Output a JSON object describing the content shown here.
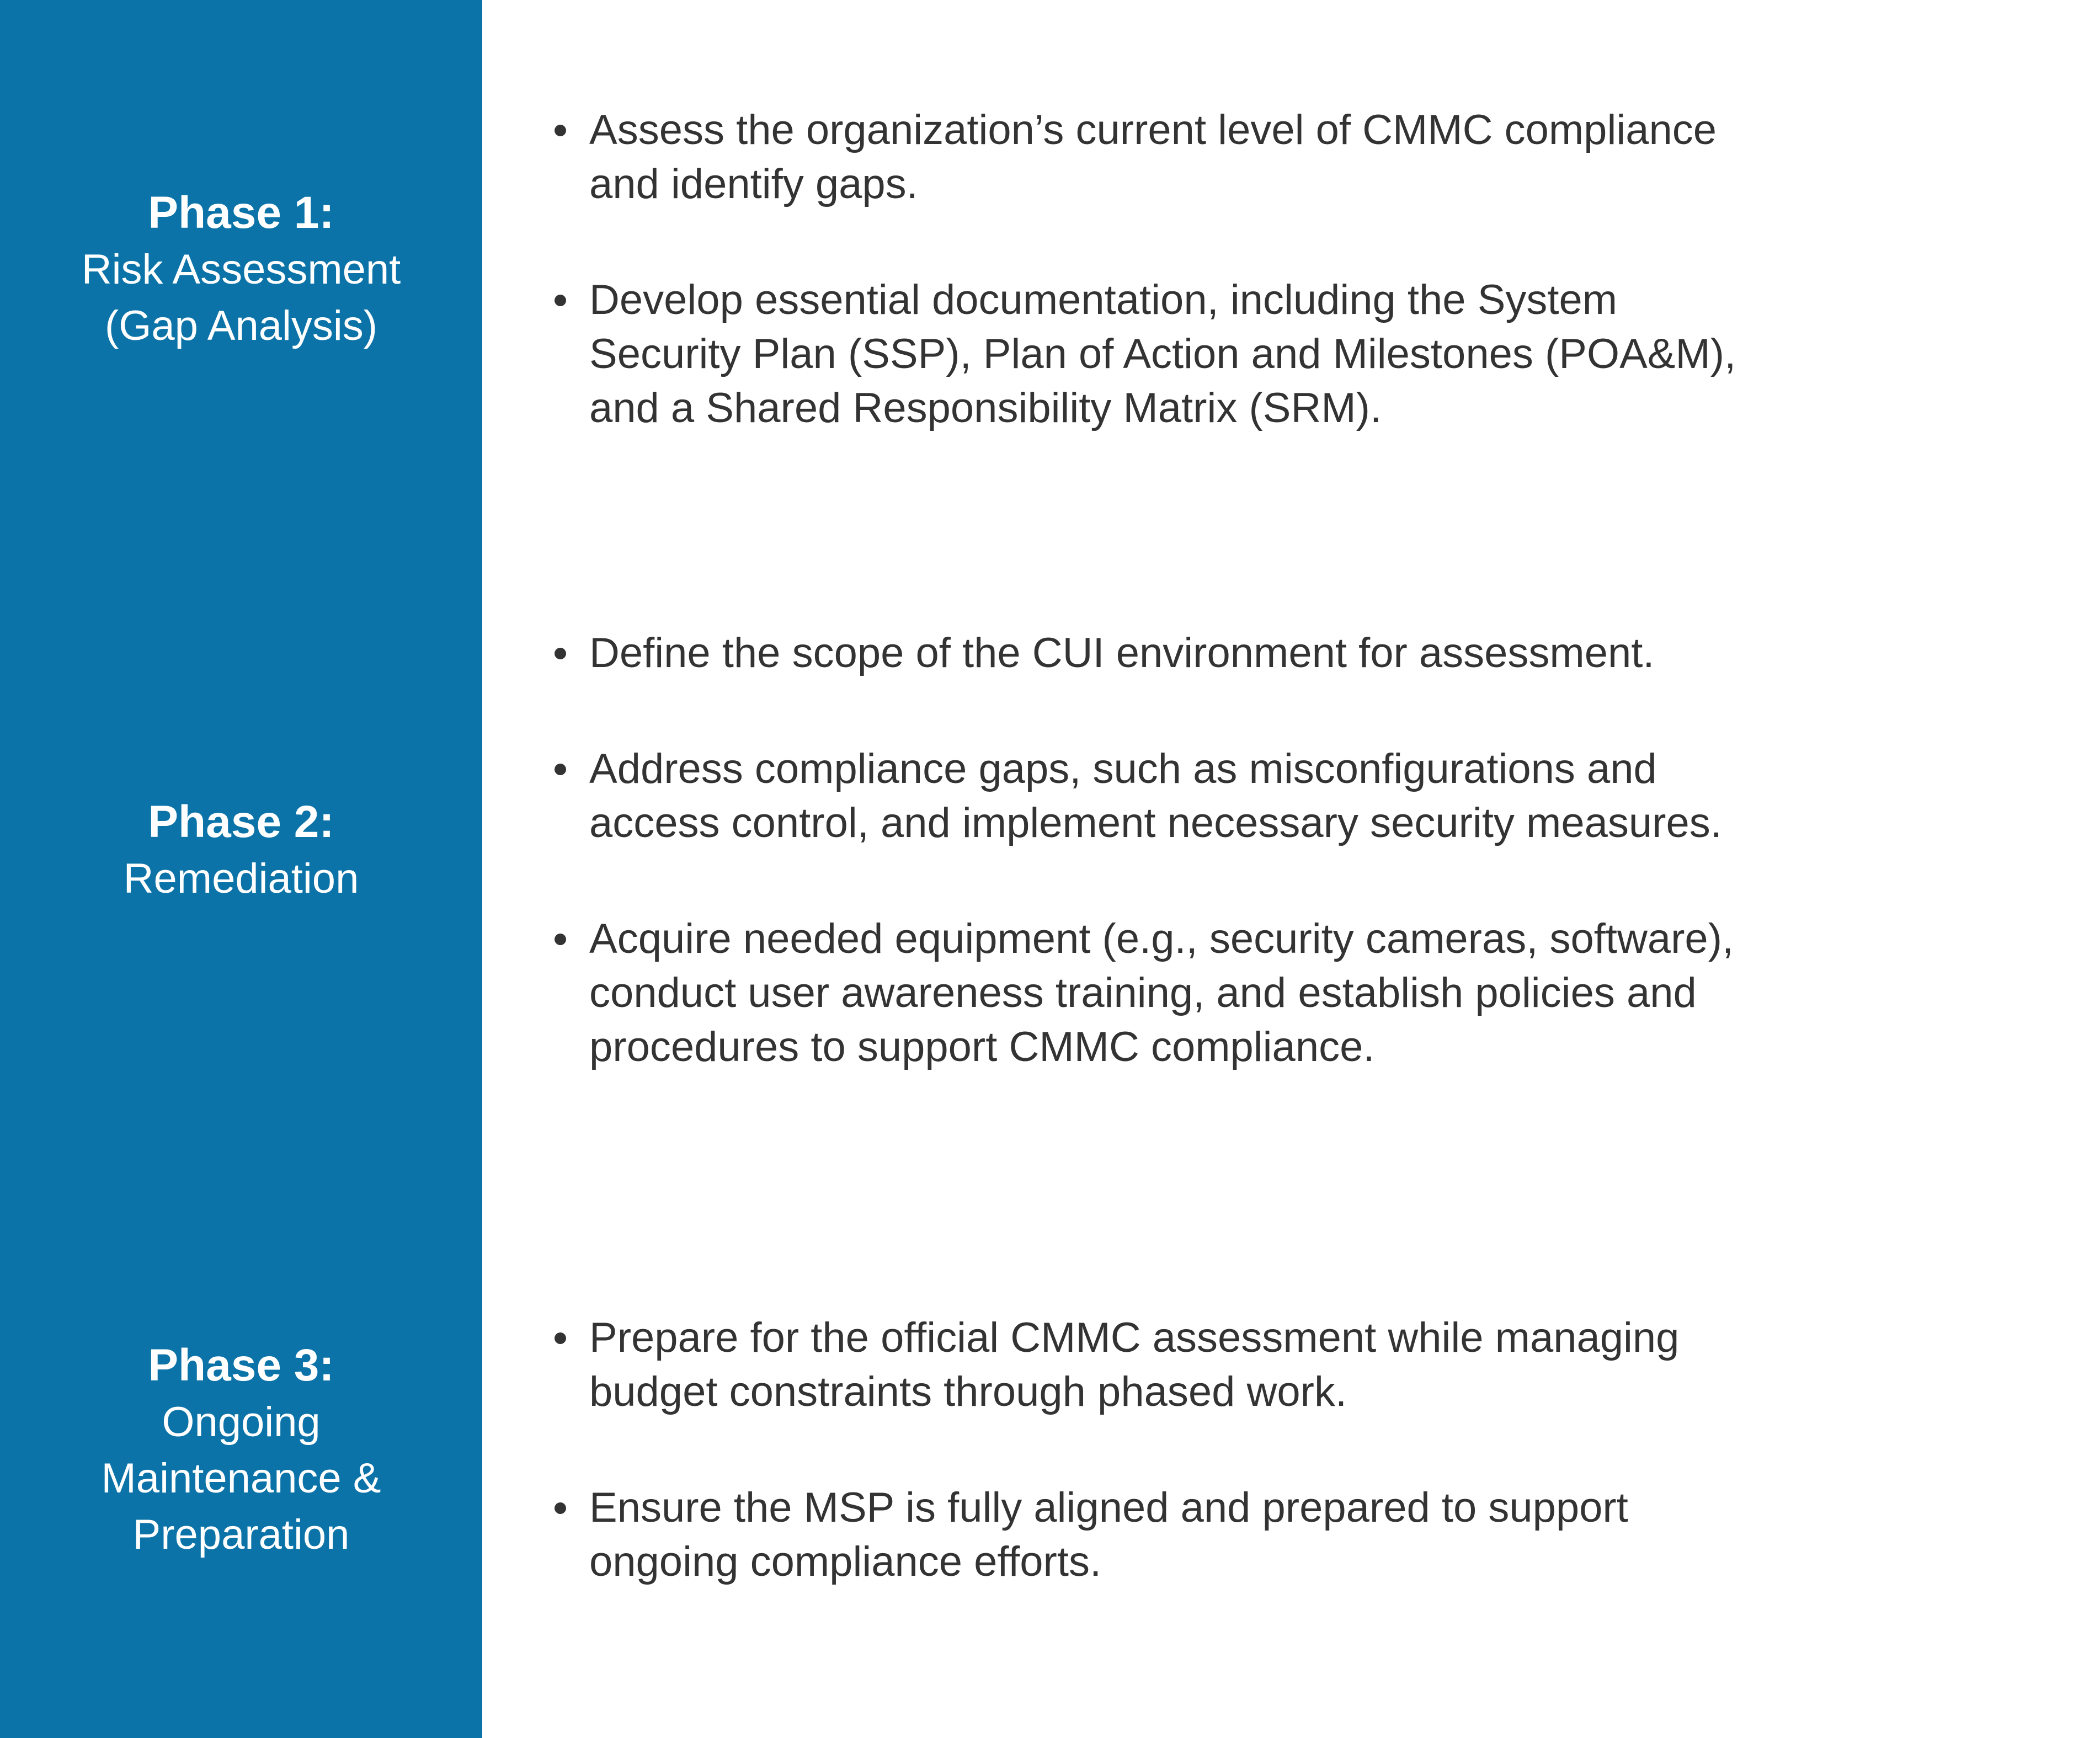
{
  "colors": {
    "accent_blue": "#0b73a8",
    "divider_dark": "#2e2e2e",
    "divider_light": "#ffffff",
    "text_dark": "#333333",
    "text_light": "#ffffff"
  },
  "phases": [
    {
      "title": "Phase 1:",
      "subtitle": "Risk Assessment\n(Gap Analysis)",
      "bullets": [
        "Assess the organization’s current level of CMMC compliance\nand identify gaps.",
        "Develop essential documentation, including the System\nSecurity Plan (SSP), Plan of Action and Milestones (POA&M),\nand a Shared Responsibility Matrix (SRM)."
      ]
    },
    {
      "title": "Phase 2:",
      "subtitle": "Remediation",
      "bullets": [
        "Define the scope of the CUI environment for assessment.",
        "Address compliance gaps, such as misconfigurations and\naccess control, and implement necessary security measures.",
        "Acquire needed equipment (e.g., security cameras, software),\nconduct user awareness training, and establish policies and\nprocedures to support CMMC compliance."
      ]
    },
    {
      "title": "Phase 3:",
      "subtitle": "Ongoing\nMaintenance &\nPreparation",
      "bullets": [
        "Prepare for the official CMMC assessment while managing\nbudget constraints through phased work.",
        "Ensure the MSP is fully aligned and prepared to support\nongoing compliance efforts."
      ]
    }
  ]
}
